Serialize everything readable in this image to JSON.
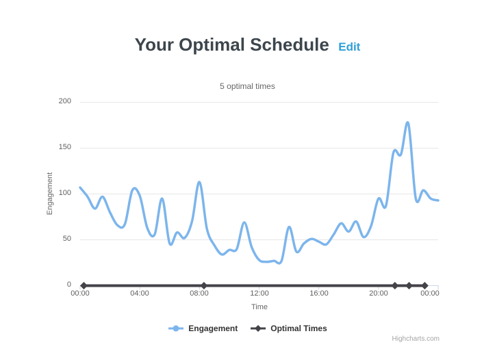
{
  "header": {
    "title": "Your Optimal Schedule",
    "edit_label": "Edit"
  },
  "chart_data": {
    "type": "line",
    "title": "5 optimal times",
    "xlabel": "Time",
    "ylabel": "Engagement",
    "x_ticks": [
      "00:00",
      "04:00",
      "08:00",
      "12:00",
      "16:00",
      "20:00",
      "00:00"
    ],
    "x_tick_hours": [
      0,
      4,
      8,
      12,
      16,
      20,
      24
    ],
    "y_ticks": [
      0,
      50,
      100,
      150,
      200
    ],
    "ylim": [
      0,
      200
    ],
    "xlim_hours": [
      0,
      24
    ],
    "grid": true,
    "legend_position": "bottom-center",
    "colors": {
      "grid": "#e6e6e6",
      "axis_line": "#ccd6eb",
      "tick_labels": "#606060",
      "axis_titles": "#666666",
      "title_text": "#3d464d",
      "subtitle_text": "#666666",
      "edit_link": "#2f9fd8",
      "legend_text": "#333333",
      "credits_text": "#a4a4a4"
    },
    "series": [
      {
        "name": "Engagement",
        "type": "spline",
        "color": "#7cb5ec",
        "marker": "circle",
        "x_step_hours": 0.5,
        "values": [
          107,
          97,
          84,
          97,
          80,
          66,
          67,
          104,
          98,
          63,
          56,
          95,
          46,
          58,
          52,
          70,
          113,
          62,
          44,
          34,
          39,
          40,
          69,
          42,
          28,
          26,
          27,
          27,
          64,
          37,
          46,
          51,
          48,
          45,
          56,
          68,
          59,
          70,
          53,
          65,
          95,
          87,
          145,
          143,
          177,
          95,
          104,
          95,
          93
        ]
      },
      {
        "name": "Optimal Times",
        "type": "line",
        "color": "#434348",
        "marker": "diamond",
        "x_hours": [
          0.25,
          8.3,
          21.1,
          22.05,
          23.1
        ],
        "values": [
          0,
          0,
          0,
          0,
          0
        ]
      }
    ]
  },
  "credits": {
    "label": "Highcharts.com"
  }
}
